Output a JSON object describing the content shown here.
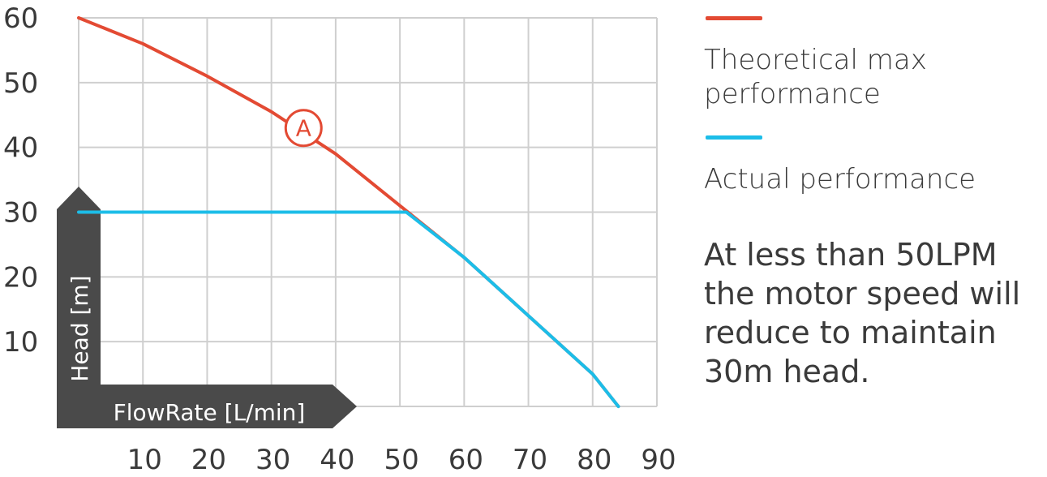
{
  "chart_data": {
    "type": "line",
    "xlabel": "FlowRate [L/min]",
    "ylabel": "Head [m]",
    "x_ticks": [
      "10",
      "20",
      "30",
      "40",
      "50",
      "60",
      "70",
      "80",
      "90"
    ],
    "y_ticks": [
      "10",
      "20",
      "30",
      "40",
      "50",
      "60"
    ],
    "xlim": [
      0,
      90
    ],
    "ylim": [
      0,
      60
    ],
    "grid": true,
    "legend_position": "right",
    "series": [
      {
        "name": "Theoretical max performance",
        "color": "#e34a33",
        "points": [
          [
            0,
            60
          ],
          [
            10,
            56
          ],
          [
            20,
            51
          ],
          [
            30,
            45.5
          ],
          [
            40,
            39
          ],
          [
            50,
            31
          ],
          [
            60,
            23
          ],
          [
            70,
            14
          ],
          [
            80,
            5
          ],
          [
            84,
            0
          ]
        ]
      },
      {
        "name": "Actual performance",
        "color": "#1cbde8",
        "points": [
          [
            0,
            30
          ],
          [
            51,
            30
          ],
          [
            60,
            23
          ],
          [
            70,
            14
          ],
          [
            80,
            5
          ],
          [
            84,
            0
          ]
        ]
      }
    ],
    "annotations": [
      {
        "label": "A",
        "x": 35,
        "y": 43
      }
    ],
    "note": "At less than 50LPM the motor speed will reduce to maintain 30m head."
  }
}
